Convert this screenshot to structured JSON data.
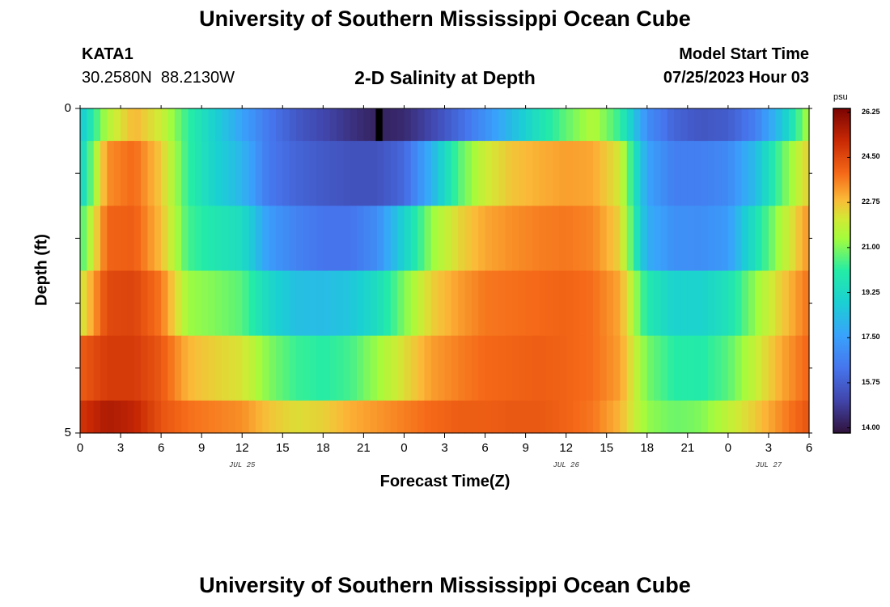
{
  "header": {
    "main_title": "University of Southern Mississippi Ocean Cube",
    "station_id": "KATA1",
    "station_coords": "30.2580N  88.2130W",
    "plot_title": "2-D Salinity at Depth",
    "model_start_label": "Model Start Time",
    "model_start_time": "07/25/2023 Hour 03",
    "footer_title": "University of Southern Mississippi Ocean Cube"
  },
  "chart_data": {
    "type": "heatmap",
    "title": "2-D Salinity at Depth",
    "xlabel": "Forecast Time(Z)",
    "ylabel": "Depth (ft)",
    "x_tick_labels": [
      "0",
      "3",
      "6",
      "9",
      "12",
      "15",
      "18",
      "21",
      "0",
      "3",
      "6",
      "9",
      "12",
      "15",
      "18",
      "21",
      "0",
      "3",
      "6"
    ],
    "date_labels": [
      {
        "text": "JUL 25",
        "hour": 12
      },
      {
        "text": "JUL 26",
        "hour": 36
      },
      {
        "text": "JUL 27",
        "hour": 51
      }
    ],
    "x_range_hours": [
      0,
      54
    ],
    "y_tick_labels": [
      "0",
      "5"
    ],
    "y_range_ft": [
      0,
      5
    ],
    "depth_rows": [
      {
        "depth_top": 0.0,
        "depth_bottom": 0.5
      },
      {
        "depth_top": 0.5,
        "depth_bottom": 1.5
      },
      {
        "depth_top": 1.5,
        "depth_bottom": 2.5
      },
      {
        "depth_top": 2.5,
        "depth_bottom": 3.5
      },
      {
        "depth_top": 3.5,
        "depth_bottom": 4.5
      },
      {
        "depth_top": 4.5,
        "depth_bottom": 5.0
      }
    ],
    "key_hours": [
      0,
      2,
      4,
      6,
      8,
      10,
      12,
      14,
      16,
      18,
      20,
      22,
      24,
      26,
      28,
      30,
      32,
      34,
      36,
      38,
      40,
      42,
      44,
      46,
      48,
      50,
      52,
      54
    ],
    "salinity_psu": [
      [
        18.6,
        21.6,
        22.9,
        22.0,
        20.2,
        18.9,
        17.6,
        16.4,
        15.6,
        15.1,
        14.6,
        14.2,
        14.4,
        15.1,
        16.0,
        17.1,
        18.3,
        19.6,
        20.7,
        21.6,
        20.2,
        17.0,
        15.9,
        15.5,
        15.7,
        16.6,
        18.6,
        21.6
      ],
      [
        18.9,
        23.4,
        23.9,
        22.6,
        20.2,
        19.0,
        18.1,
        16.4,
        15.9,
        15.6,
        15.4,
        15.4,
        16.0,
        18.0,
        20.5,
        22.0,
        22.7,
        23.0,
        23.2,
        23.1,
        22.1,
        17.6,
        16.6,
        16.6,
        16.9,
        18.3,
        20.7,
        22.6
      ],
      [
        20.3,
        24.0,
        24.1,
        22.8,
        20.4,
        19.8,
        19.4,
        17.4,
        16.7,
        16.3,
        16.3,
        17.0,
        19.0,
        21.2,
        22.4,
        23.1,
        23.4,
        23.6,
        23.7,
        23.5,
        22.5,
        17.9,
        17.1,
        17.0,
        17.4,
        19.6,
        21.6,
        23.4
      ],
      [
        22.0,
        24.5,
        24.6,
        23.7,
        21.3,
        21.0,
        20.6,
        19.2,
        18.4,
        18.3,
        18.6,
        19.4,
        21.0,
        22.5,
        23.2,
        23.7,
        23.8,
        23.9,
        24.0,
        23.8,
        23.1,
        19.9,
        19.0,
        19.0,
        19.6,
        21.2,
        22.6,
        23.8
      ],
      [
        24.1,
        24.8,
        24.8,
        24.2,
        22.9,
        22.5,
        22.2,
        21.0,
        20.3,
        20.1,
        20.4,
        21.3,
        22.3,
        23.2,
        23.6,
        23.9,
        24.0,
        24.1,
        24.0,
        23.8,
        23.2,
        20.9,
        20.1,
        20.0,
        20.6,
        21.9,
        23.1,
        24.0
      ],
      [
        24.9,
        25.6,
        25.3,
        24.3,
        23.8,
        23.6,
        23.4,
        22.7,
        22.3,
        22.5,
        23.0,
        23.3,
        23.6,
        23.9,
        24.1,
        24.1,
        24.2,
        24.2,
        24.0,
        23.7,
        22.9,
        21.2,
        20.8,
        21.0,
        21.8,
        22.6,
        23.5,
        24.3
      ]
    ],
    "min_band": {
      "hour_start": 21.9,
      "hour_end": 22.4,
      "row": 0,
      "value": 13.8
    },
    "colorbar": {
      "unit": "psu",
      "min": 13.8,
      "max": 26.4,
      "tick_values": [
        26.25,
        24.5,
        22.75,
        21.0,
        19.25,
        17.5,
        15.75,
        14.0
      ],
      "tick_labels": [
        "26.25",
        "24.50",
        "22.75",
        "21.00",
        "19.25",
        "17.50",
        "15.75",
        "14.00"
      ]
    }
  }
}
